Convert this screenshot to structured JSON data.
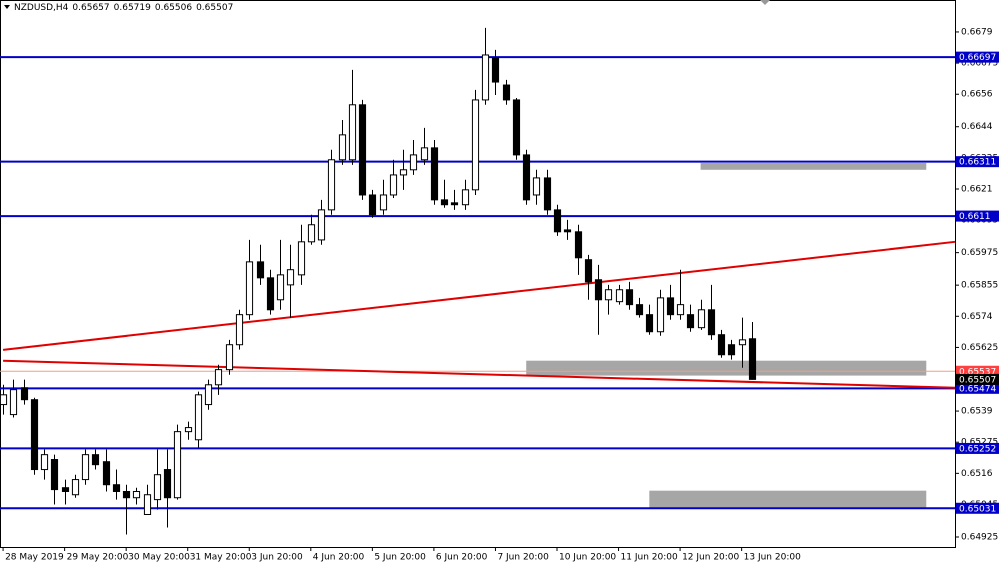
{
  "chart_data": {
    "type": "candlestick",
    "symbol": "NZDUSD,H4",
    "open": [
      0.65414,
      0.65377,
      0.65476,
      0.65432,
      0.65174,
      0.65211,
      0.65107,
      0.65081,
      0.65137,
      0.65229,
      0.65203,
      0.65118,
      0.65093,
      0.6507,
      0.65008,
      0.65063,
      0.65174,
      0.6507,
      0.65314,
      0.65284,
      0.65414,
      0.65487,
      0.65543,
      0.65635,
      0.65746,
      0.65941,
      0.65882,
      0.65801,
      0.65856,
      0.65893,
      0.66015,
      0.66022,
      0.66133,
      0.66318,
      0.66318,
      0.66521,
      0.66188,
      0.66133,
      0.66188,
      0.66262,
      0.66281,
      0.66318,
      0.66362,
      0.6617,
      0.66159,
      0.66152,
      0.66207,
      0.66539,
      0.66694,
      0.66594,
      0.66539,
      0.66336,
      0.66188,
      0.66251,
      0.66133,
      0.66059,
      0.66052,
      0.65949,
      0.65875,
      0.65801,
      0.65794,
      0.65838,
      0.65783,
      0.65746,
      0.65683,
      0.65808,
      0.65746,
      0.65746,
      0.65698,
      0.65764,
      0.65672,
      0.65635,
      0.65635,
      0.65657
    ],
    "high": [
      0.65487,
      0.65506,
      0.65506,
      0.65439,
      0.65248,
      0.65229,
      0.65137,
      0.65155,
      0.65248,
      0.65248,
      0.65248,
      0.65174,
      0.65118,
      0.65107,
      0.65118,
      0.65248,
      0.65248,
      0.6534,
      0.65351,
      0.65462,
      0.65506,
      0.65561,
      0.65653,
      0.65764,
      0.66022,
      0.66004,
      0.65912,
      0.66022,
      0.66004,
      0.66078,
      0.66115,
      0.6617,
      0.66355,
      0.66465,
      0.6665,
      0.66539,
      0.66207,
      0.66244,
      0.66318,
      0.66355,
      0.66391,
      0.66436,
      0.66391,
      0.66244,
      0.66207,
      0.66244,
      0.66576,
      0.66805,
      0.66724,
      0.66613,
      0.66546,
      0.66355,
      0.66281,
      0.66281,
      0.66152,
      0.66096,
      0.66078,
      0.65967,
      0.6593,
      0.65856,
      0.65856,
      0.65867,
      0.65808,
      0.65783,
      0.65838,
      0.65856,
      0.65912,
      0.65783,
      0.65801,
      0.65856,
      0.6569,
      0.65653,
      0.65735,
      0.65719
    ],
    "low": [
      0.65377,
      0.65366,
      0.65414,
      0.65155,
      0.65137,
      0.65045,
      0.65045,
      0.6507,
      0.65118,
      0.65174,
      0.65093,
      0.65063,
      0.64934,
      0.65045,
      0.65008,
      0.65026,
      0.6496,
      0.65063,
      0.65284,
      0.65255,
      0.65395,
      0.6545,
      0.65524,
      0.65617,
      0.65727,
      0.65856,
      0.65746,
      0.65764,
      0.65735,
      0.65856,
      0.66004,
      0.66004,
      0.66115,
      0.66299,
      0.66299,
      0.6617,
      0.66104,
      0.66115,
      0.66177,
      0.66207,
      0.66262,
      0.66299,
      0.66152,
      0.66141,
      0.66133,
      0.66133,
      0.66188,
      0.66521,
      0.66557,
      0.66521,
      0.66318,
      0.66152,
      0.66152,
      0.66115,
      0.66037,
      0.66022,
      0.65893,
      0.65801,
      0.65672,
      0.65746,
      0.65783,
      0.65764,
      0.65735,
      0.65672,
      0.65668,
      0.65727,
      0.65727,
      0.65683,
      0.6569,
      0.65653,
      0.65587,
      0.6558,
      0.6555,
      0.65506
    ],
    "close": [
      0.6545,
      0.65469,
      0.65432,
      0.65174,
      0.65229,
      0.651,
      0.65093,
      0.65137,
      0.65229,
      0.65192,
      0.65118,
      0.65093,
      0.6507,
      0.65093,
      0.65081,
      0.65155,
      0.6507,
      0.65314,
      0.65329,
      0.6545,
      0.65487,
      0.65543,
      0.65635,
      0.65746,
      0.65941,
      0.65882,
      0.65764,
      0.65893,
      0.65912,
      0.66015,
      0.66078,
      0.66133,
      0.66318,
      0.6641,
      0.66521,
      0.66188,
      0.66115,
      0.66188,
      0.66262,
      0.66281,
      0.66336,
      0.66362,
      0.6617,
      0.66152,
      0.66152,
      0.66207,
      0.66539,
      0.66705,
      0.66605,
      0.66539,
      0.66336,
      0.6617,
      0.66251,
      0.66133,
      0.66052,
      0.66052,
      0.65956,
      0.65867,
      0.65801,
      0.65838,
      0.65838,
      0.65783,
      0.65746,
      0.65683,
      0.65808,
      0.65746,
      0.65783,
      0.65698,
      0.65764,
      0.65672,
      0.65598,
      0.65598,
      0.65653,
      0.65507
    ],
    "ask": 0.65537,
    "levels": [
      0.66697,
      0.66311,
      0.6611,
      0.65474,
      0.65252,
      0.65031
    ],
    "level_color": "#0000c8",
    "trendlines": [
      {
        "x": [
          0,
          92.8
        ],
        "y": [
          0.65616,
          0.66015
        ]
      },
      {
        "x": [
          0,
          92.8
        ],
        "y": [
          0.65576,
          0.65476
        ]
      }
    ],
    "trend_color": "#e00000",
    "zones": [
      {
        "x": [
          68,
          90
        ],
        "y": [
          0.66306,
          0.66281
        ]
      },
      {
        "x": [
          51,
          90
        ],
        "y": [
          0.65576,
          0.65521
        ]
      },
      {
        "x": [
          63,
          90
        ],
        "y": [
          0.65096,
          0.65033
        ]
      }
    ],
    "zone_color": "#a6a6a6",
    "xlim": [
      -0.3,
      92.8
    ],
    "ylim": [
      0.64888,
      0.66908
    ],
    "yticks": [
      0.6679,
      0.66675,
      0.6656,
      0.6644,
      0.66325,
      0.6621,
      0.66095,
      0.65975,
      0.65855,
      0.6574,
      0.65625,
      0.6539,
      0.65275,
      0.6516,
      0.65045,
      0.64925
    ],
    "xticks": [
      {
        "value": 0,
        "label": "28 May 2019"
      },
      {
        "value": 6,
        "label": "29 May 20:00"
      },
      {
        "value": 12,
        "label": "30 May 20:00"
      },
      {
        "value": 18,
        "label": "31 May 20:00"
      },
      {
        "value": 24,
        "label": "3 Jun 20:00"
      },
      {
        "value": 30,
        "label": "4 Jun 20:00"
      },
      {
        "value": 36,
        "label": "5 Jun 20:00"
      },
      {
        "value": 42,
        "label": "6 Jun 20:00"
      },
      {
        "value": 48,
        "label": "7 Jun 20:00"
      },
      {
        "value": 54,
        "label": "10 Jun 20:00"
      },
      {
        "value": 60,
        "label": "11 Jun 20:00"
      },
      {
        "value": 66,
        "label": "12 Jun 20:00"
      },
      {
        "value": 72,
        "label": "13 Jun 20:00"
      }
    ]
  }
}
